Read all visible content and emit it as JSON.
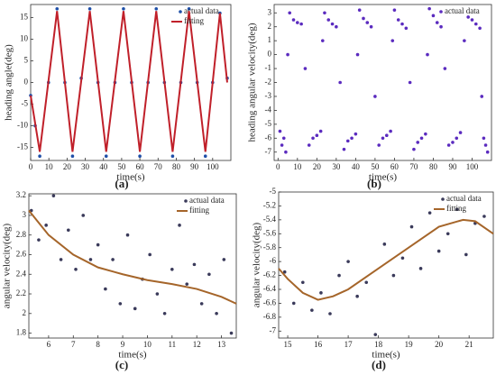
{
  "chart_data": [
    {
      "type": "scatter",
      "panel_label": "(a)",
      "x_label": "time(s)",
      "y_label": "heading angle(deg)",
      "xlim": [
        0,
        110
      ],
      "xticks": [
        0,
        10,
        20,
        30,
        40,
        50,
        60,
        70,
        80,
        90,
        100
      ],
      "ylim": [
        -18,
        18
      ],
      "yticks": [
        -15,
        -10,
        -5,
        0,
        5,
        10,
        15
      ],
      "series": [
        {
          "name": "actual data",
          "mode": "markers",
          "color": "#1f4fa8",
          "x": [
            0,
            2.5,
            5,
            9.8,
            14.5,
            18.8,
            23,
            27.8,
            32.5,
            37,
            41.5,
            46.3,
            51,
            55.5,
            60,
            64.5,
            69,
            73.5,
            78,
            82.5,
            87,
            91.5,
            96,
            100,
            104,
            108
          ],
          "values": [
            -3,
            -10,
            -17,
            0,
            17,
            0,
            -17,
            1,
            17,
            0,
            -17,
            0,
            17,
            0,
            -17,
            0,
            17,
            0,
            -17,
            0,
            17,
            0,
            -17,
            0,
            16,
            1
          ]
        },
        {
          "name": "fitting",
          "mode": "lines",
          "color": "#c0202a",
          "x": [
            0,
            5,
            14.5,
            23,
            32.5,
            41.5,
            51,
            60,
            69,
            78,
            87,
            96,
            104,
            108
          ],
          "values": [
            -3,
            -16,
            16.5,
            -16,
            16.5,
            -16,
            16.5,
            -16,
            16.5,
            -16,
            16.5,
            -16,
            16,
            0
          ]
        }
      ]
    },
    {
      "type": "scatter",
      "panel_label": "(b)",
      "x_label": "time(s)",
      "y_label": "heading angular velocity(deg)",
      "xlim": [
        -2,
        110
      ],
      "xticks": [
        0,
        10,
        20,
        30,
        40,
        50,
        60,
        70,
        80,
        90,
        100
      ],
      "ylim": [
        -7.6,
        3.6
      ],
      "yticks": [
        -7,
        -6,
        -5,
        -4,
        -3,
        -2,
        -1,
        0,
        1,
        2,
        3
      ],
      "series": [
        {
          "name": "actual data",
          "mode": "markers",
          "color": "#5b2bbf",
          "x": [
            1,
            2,
            3,
            4,
            5,
            6,
            8,
            10,
            12,
            14,
            16,
            18,
            20,
            22,
            23,
            24,
            26,
            28,
            30,
            32,
            34,
            36,
            38,
            40,
            41,
            42,
            44,
            46,
            48,
            50,
            52,
            54,
            56,
            58,
            59,
            60,
            62,
            64,
            66,
            68,
            70,
            72,
            74,
            76,
            77,
            78,
            80,
            82,
            84,
            86,
            88,
            90,
            92,
            94,
            96,
            98,
            100,
            102,
            104,
            105,
            106,
            107,
            108
          ],
          "values": [
            -5.5,
            -6.5,
            -6,
            -7,
            0,
            3,
            2.5,
            2.3,
            2.2,
            -1,
            -6.5,
            -6,
            -5.8,
            -5.5,
            1,
            3,
            2.5,
            2.2,
            2,
            -2,
            -6.8,
            -6.2,
            -6,
            -5.7,
            0,
            3.2,
            2.6,
            2.3,
            2,
            -3,
            -6.5,
            -6,
            -5.8,
            -5.5,
            1,
            3.2,
            2.5,
            2.2,
            1.9,
            -2,
            -6.8,
            -6.3,
            -6,
            -5.7,
            0,
            3.3,
            2.8,
            2.3,
            2,
            -1,
            -6.5,
            -6.3,
            -6,
            -5.6,
            1,
            2.7,
            2.5,
            2.2,
            1.9,
            -3,
            -6,
            -6.5,
            -7
          ]
        }
      ]
    },
    {
      "type": "scatter",
      "panel_label": "(c)",
      "x_label": "time(s)",
      "y_label": "angular velocity(deg)",
      "xlim": [
        5.2,
        13.6
      ],
      "xticks": [
        6,
        7,
        8,
        9,
        10,
        11,
        12,
        13
      ],
      "ylim": [
        1.75,
        3.22
      ],
      "yticks": [
        1.8,
        2,
        2.2,
        2.4,
        2.6,
        2.8,
        3,
        3.2
      ],
      "series": [
        {
          "name": "actual data",
          "mode": "markers",
          "color": "#3a3a5a",
          "x": [
            5.3,
            5.6,
            5.9,
            6.2,
            6.5,
            6.8,
            7.1,
            7.4,
            7.7,
            8,
            8.3,
            8.6,
            8.9,
            9.2,
            9.5,
            9.8,
            10.1,
            10.4,
            10.7,
            11,
            11.3,
            11.6,
            11.9,
            12.2,
            12.5,
            12.8,
            13.1,
            13.4
          ],
          "values": [
            3.05,
            2.75,
            2.9,
            3.2,
            2.55,
            2.85,
            2.45,
            3.0,
            2.55,
            2.7,
            2.25,
            2.55,
            2.1,
            2.8,
            2.05,
            2.35,
            2.6,
            2.2,
            2.0,
            2.45,
            2.9,
            2.3,
            2.5,
            2.1,
            2.4,
            2.0,
            2.55,
            1.8
          ]
        },
        {
          "name": "fitting",
          "mode": "lines",
          "color": "#a5652a",
          "x": [
            5.2,
            6,
            7,
            8,
            9,
            10,
            11,
            12,
            13,
            13.6
          ],
          "values": [
            3.05,
            2.8,
            2.6,
            2.47,
            2.4,
            2.34,
            2.3,
            2.25,
            2.17,
            2.1
          ]
        }
      ]
    },
    {
      "type": "scatter",
      "panel_label": "(d)",
      "x_label": "time(s)",
      "y_label": "angular velocity(deg)",
      "xlim": [
        14.7,
        21.8
      ],
      "xticks": [
        15,
        16,
        17,
        18,
        19,
        20,
        21
      ],
      "ylim": [
        -7.1,
        -5
      ],
      "yticks": [
        -7,
        -6.8,
        -6.6,
        -6.4,
        -6.2,
        -6,
        -5.8,
        -5.6,
        -5.4,
        -5.2,
        -5
      ],
      "series": [
        {
          "name": "actual data",
          "mode": "markers",
          "color": "#3a3a5a",
          "x": [
            14.9,
            15.2,
            15.5,
            15.8,
            16.1,
            16.4,
            16.7,
            17,
            17.3,
            17.6,
            17.9,
            18.2,
            18.5,
            18.8,
            19.1,
            19.4,
            19.7,
            20,
            20.3,
            20.6,
            20.9,
            21.2,
            21.5
          ],
          "values": [
            -6.15,
            -6.6,
            -6.3,
            -6.7,
            -6.45,
            -6.75,
            -6.2,
            -6.0,
            -6.5,
            -6.3,
            -7.05,
            -5.75,
            -6.2,
            -5.95,
            -5.5,
            -6.1,
            -5.3,
            -5.85,
            -5.6,
            -5.25,
            -5.9,
            -5.45,
            -5.35
          ]
        },
        {
          "name": "fitting",
          "mode": "lines",
          "color": "#a5652a",
          "x": [
            14.7,
            15,
            15.5,
            16,
            16.5,
            17,
            18,
            19,
            20,
            20.8,
            21.2,
            21.8
          ],
          "values": [
            -6.1,
            -6.25,
            -6.45,
            -6.55,
            -6.5,
            -6.4,
            -6.1,
            -5.8,
            -5.5,
            -5.4,
            -5.42,
            -5.6
          ]
        }
      ]
    }
  ]
}
